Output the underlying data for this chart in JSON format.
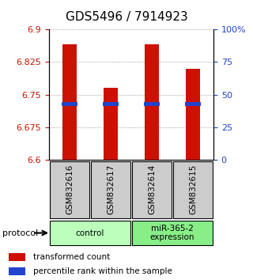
{
  "title": "GDS5496 / 7914923",
  "samples": [
    "GSM832616",
    "GSM832617",
    "GSM832614",
    "GSM832615"
  ],
  "bar_bottoms": [
    6.6,
    6.6,
    6.6,
    6.6
  ],
  "bar_tops": [
    6.865,
    6.765,
    6.865,
    6.81
  ],
  "blue_marks": [
    6.728,
    6.728,
    6.728,
    6.728
  ],
  "ylim_left": [
    6.6,
    6.9
  ],
  "ylim_right": [
    0,
    100
  ],
  "yticks_left": [
    6.6,
    6.675,
    6.75,
    6.825,
    6.9
  ],
  "yticks_right": [
    0,
    25,
    50,
    75,
    100
  ],
  "ytick_labels_left": [
    "6.6",
    "6.675",
    "6.75",
    "6.825",
    "6.9"
  ],
  "ytick_labels_right": [
    "0",
    "25",
    "50",
    "75",
    "100%"
  ],
  "bar_color": "#cc1100",
  "blue_color": "#2244cc",
  "grid_color": "#888888",
  "groups": [
    {
      "label": "control",
      "samples": [
        0,
        1
      ],
      "color": "#bbffbb"
    },
    {
      "label": "miR-365-2\nexpression",
      "samples": [
        2,
        3
      ],
      "color": "#88ee88"
    }
  ],
  "protocol_label": "protocol",
  "legend_red_label": "transformed count",
  "legend_blue_label": "percentile rank within the sample",
  "bar_width": 0.35,
  "sample_box_color": "#cccccc",
  "title_fontsize": 11,
  "tick_fontsize": 8,
  "label_fontsize": 8
}
